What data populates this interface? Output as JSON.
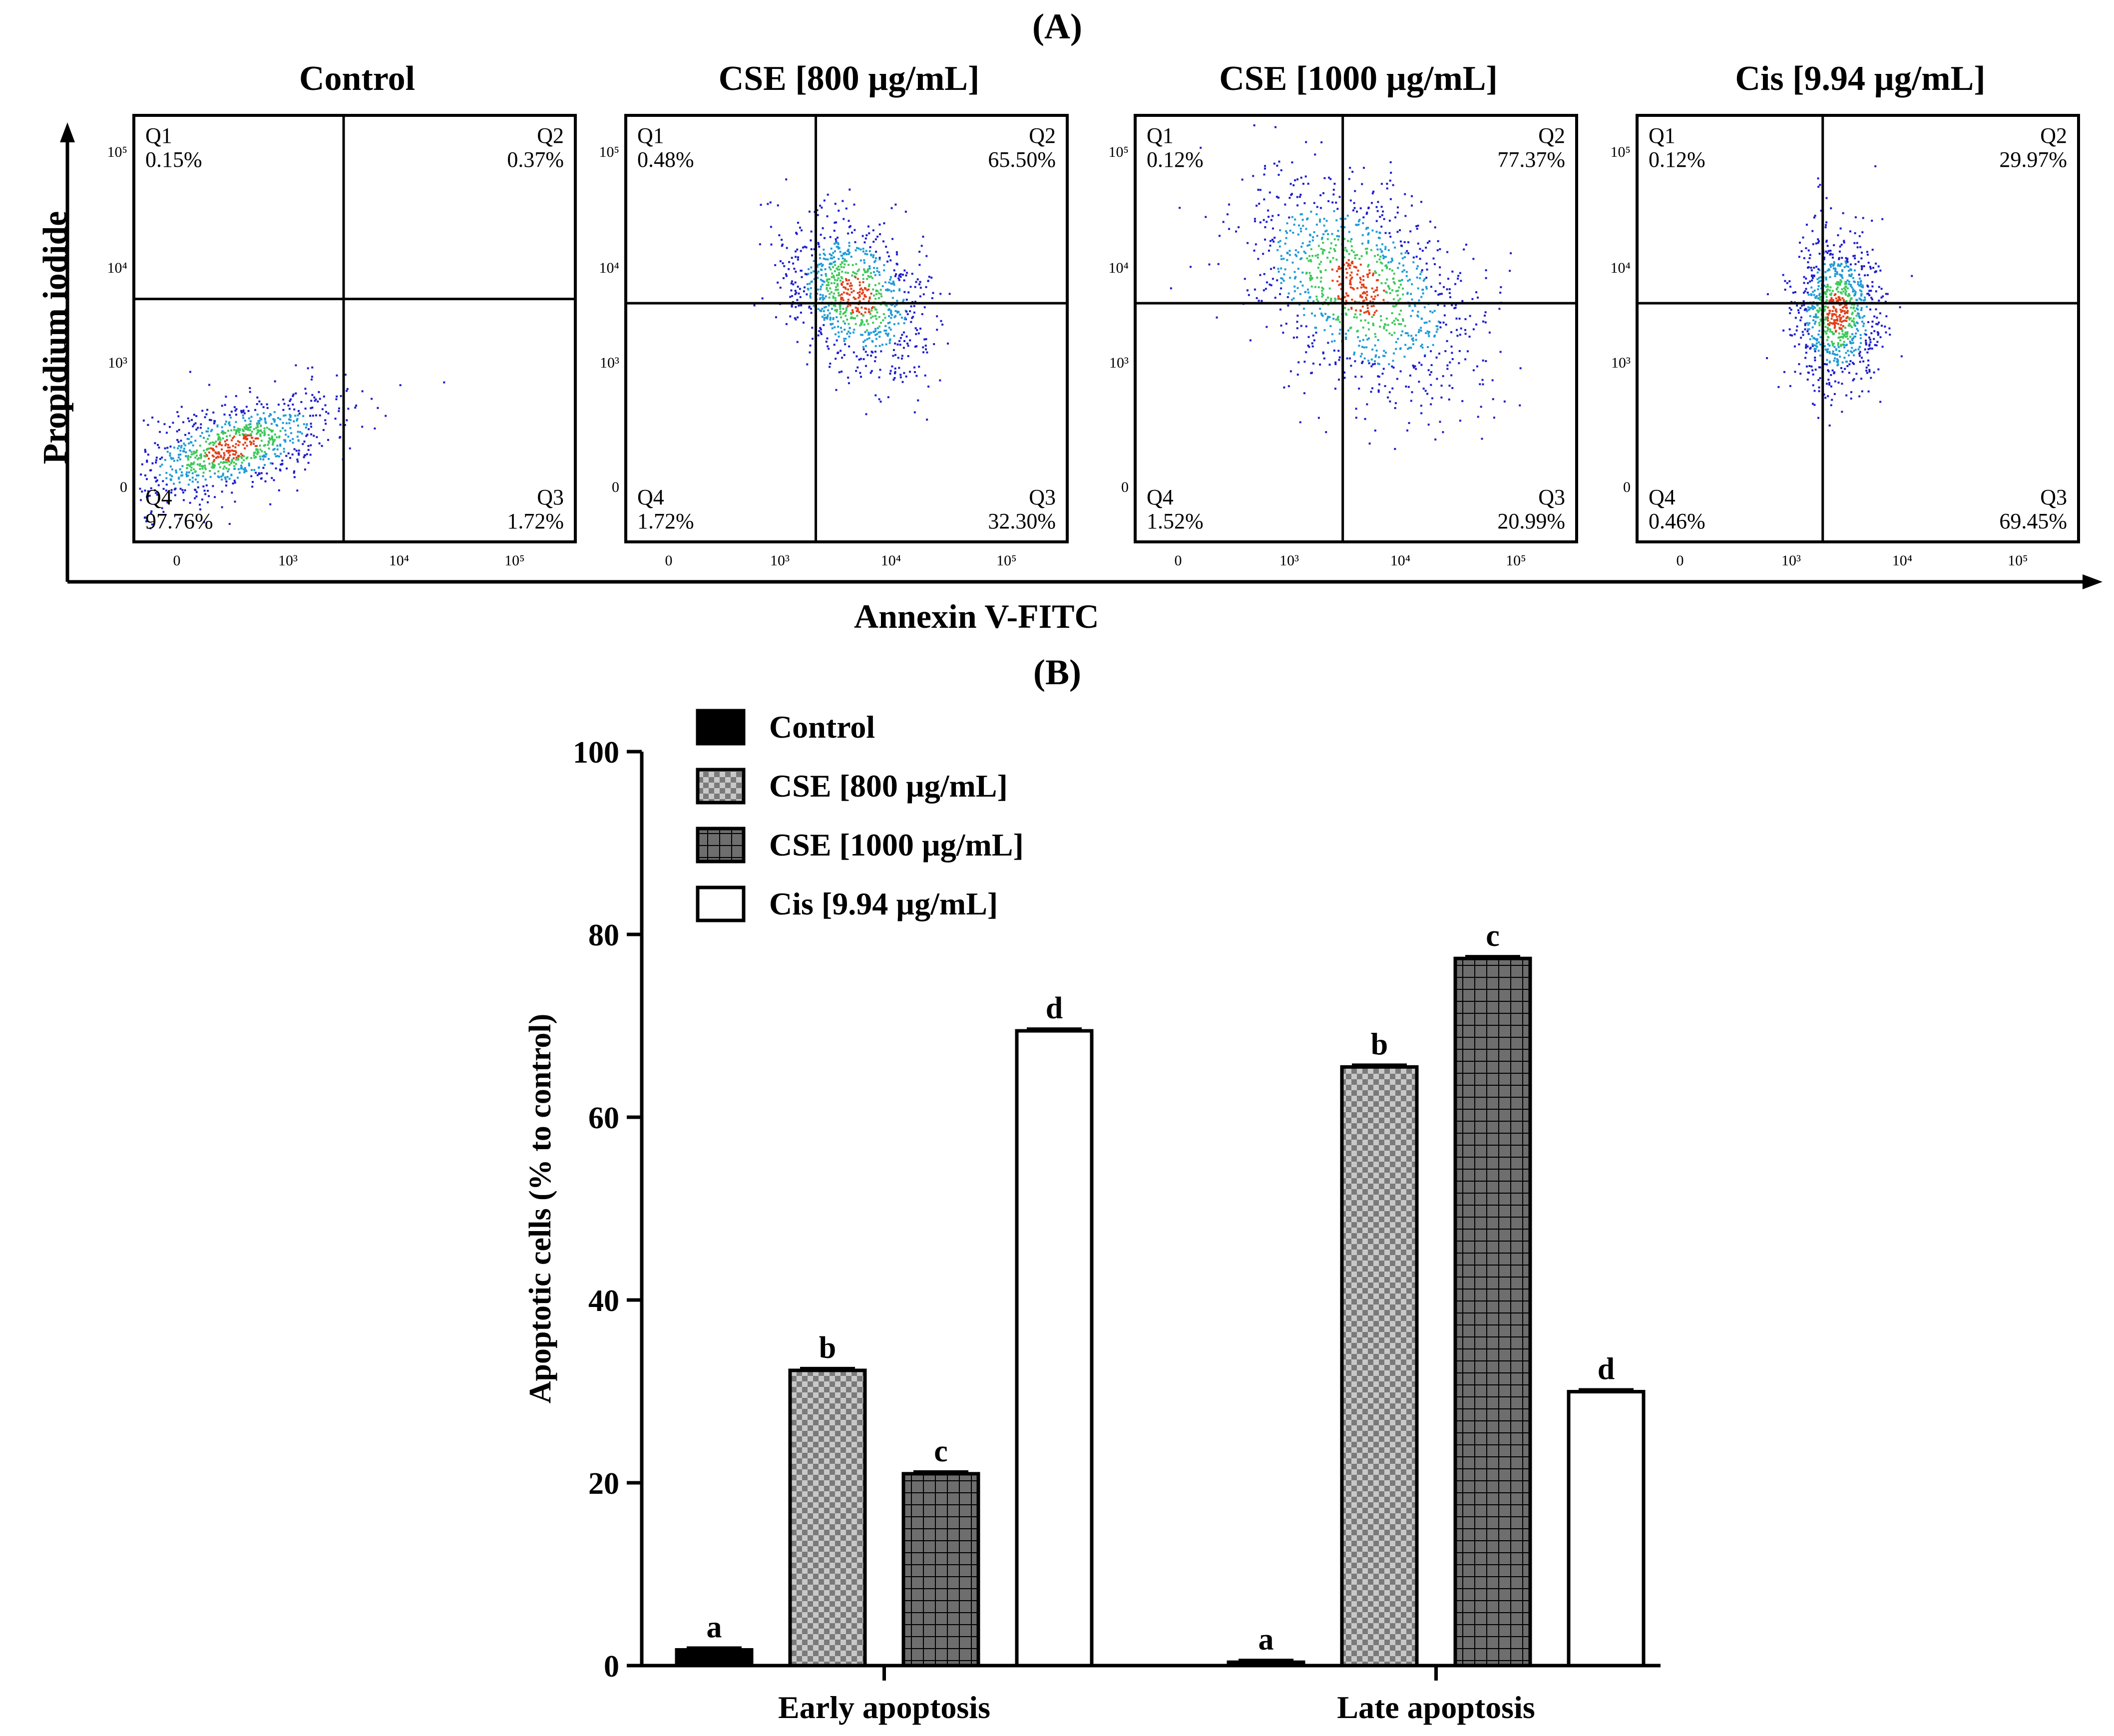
{
  "panel_labels": {
    "a": "(A)",
    "b": "(B)"
  },
  "flow": {
    "y_axis_title": "Propidium iodide",
    "x_axis_title": "Annexin V-FITC",
    "panels": [
      {
        "title": "Control",
        "q1": "Q1\n0.15%",
        "q2": "Q2\n0.37%",
        "q3": "Q3\n1.72%",
        "q4": "Q4\n97.76%",
        "x_ticks": [
          "0",
          "10³",
          "10⁴",
          "10⁵"
        ],
        "y_ticks": [
          "10⁵",
          "10⁴",
          "10³",
          "0"
        ]
      },
      {
        "title": "CSE [800 µg/mL]",
        "q1": "Q1\n0.48%",
        "q2": "Q2\n65.50%",
        "q3": "Q3\n32.30%",
        "q4": "Q4\n1.72%",
        "x_ticks": [
          "0",
          "10³",
          "10⁴",
          "10⁵"
        ],
        "y_ticks": [
          "10⁵",
          "10⁴",
          "10³",
          "0"
        ]
      },
      {
        "title": "CSE [1000 µg/mL]",
        "q1": "Q1\n0.12%",
        "q2": "Q2\n77.37%",
        "q3": "Q3\n20.99%",
        "q4": "Q4\n1.52%",
        "x_ticks": [
          "0",
          "10³",
          "10⁴",
          "10⁵"
        ],
        "y_ticks": [
          "10⁵",
          "10⁴",
          "10³",
          "0"
        ]
      },
      {
        "title": "Cis [9.94 µg/mL]",
        "q1": "Q1\n0.12%",
        "q2": "Q2\n29.97%",
        "q3": "Q3\n69.45%",
        "q4": "Q4\n0.46%",
        "x_ticks": [
          "0",
          "10³",
          "10⁴",
          "10⁵"
        ],
        "y_ticks": [
          "10⁵",
          "10⁴",
          "10³",
          "0"
        ]
      }
    ]
  },
  "chart_data": {
    "type": "bar",
    "categories": [
      "Early apoptosis",
      "Late apoptosis"
    ],
    "series": [
      {
        "name": "Control",
        "values": [
          1.72,
          0.37
        ],
        "letters": [
          "a",
          "a"
        ],
        "pattern": "solid-black"
      },
      {
        "name": "CSE [800 µg/mL]",
        "values": [
          32.3,
          65.5
        ],
        "letters": [
          "b",
          "b"
        ],
        "pattern": "checker"
      },
      {
        "name": "CSE [1000 µg/mL]",
        "values": [
          20.99,
          77.37
        ],
        "letters": [
          "c",
          "c"
        ],
        "pattern": "grid"
      },
      {
        "name": "Cis [9.94 µg/mL]",
        "values": [
          69.45,
          29.97
        ],
        "letters": [
          "d",
          "d"
        ],
        "pattern": "white"
      }
    ],
    "ylabel": "Apoptotic cells (% to control)",
    "xlabel": "",
    "ylim": [
      0,
      100
    ],
    "yticks": [
      "0",
      "20",
      "40",
      "60",
      "80",
      "100"
    ],
    "legend": "top-left",
    "grid": false
  }
}
